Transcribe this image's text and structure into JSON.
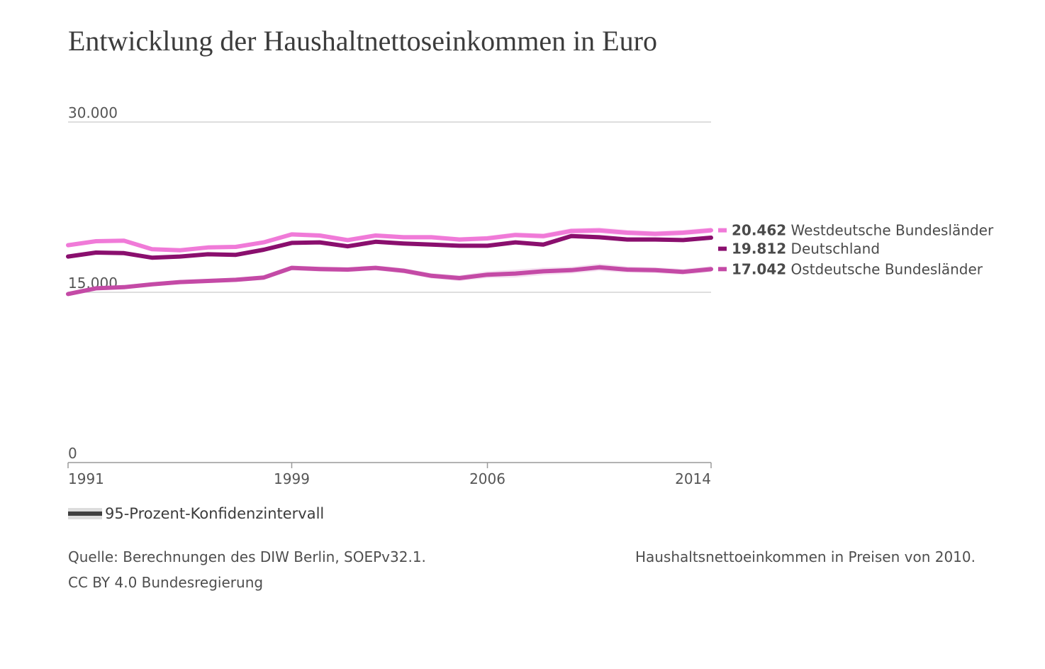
{
  "title": "Entwicklung der Haushaltnettoseinkommen in Euro",
  "chart_data": {
    "type": "line",
    "title": "Entwicklung der Haushaltnettoseinkommen in Euro",
    "xlabel": "",
    "ylabel": "",
    "xlim": [
      1991,
      2014
    ],
    "ylim": [
      0,
      30000
    ],
    "y_ticks": [
      {
        "value": 0,
        "label": "0"
      },
      {
        "value": 15000,
        "label": "15.000"
      },
      {
        "value": 30000,
        "label": "30.000"
      }
    ],
    "x_ticks": [
      {
        "value": 1991,
        "label": "1991"
      },
      {
        "value": 1999,
        "label": "1999"
      },
      {
        "value": 2006,
        "label": "2006"
      },
      {
        "value": 2014,
        "label": "2014"
      }
    ],
    "grid": true,
    "x": [
      1991,
      1992,
      1993,
      1994,
      1995,
      1996,
      1997,
      1998,
      1999,
      2000,
      2001,
      2002,
      2003,
      2004,
      2005,
      2006,
      2007,
      2008,
      2009,
      2010,
      2011,
      2012,
      2013,
      2014
    ],
    "series": [
      {
        "name": "Westdeutsche Bundesländer",
        "end_value": "20.462",
        "color": "#f07ad8",
        "band_color": "#f7c4ec",
        "values": [
          19150,
          19500,
          19550,
          18800,
          18700,
          18950,
          19000,
          19400,
          20100,
          20000,
          19600,
          20000,
          19850,
          19850,
          19650,
          19750,
          20050,
          19950,
          20400,
          20450,
          20250,
          20150,
          20250,
          20462
        ],
        "ci": [
          180,
          160,
          160,
          160,
          160,
          160,
          160,
          180,
          200,
          200,
          200,
          200,
          200,
          200,
          200,
          220,
          220,
          240,
          250,
          260,
          250,
          240,
          240,
          240
        ]
      },
      {
        "name": "Deutschland",
        "end_value": "19.812",
        "color": "#8a0f6e",
        "band_color": "#d9a3c9",
        "values": [
          18150,
          18500,
          18450,
          18050,
          18150,
          18350,
          18300,
          18750,
          19350,
          19400,
          19050,
          19450,
          19300,
          19200,
          19100,
          19100,
          19400,
          19200,
          19950,
          19850,
          19650,
          19650,
          19600,
          19812
        ],
        "ci": [
          140,
          120,
          120,
          120,
          120,
          120,
          120,
          140,
          150,
          150,
          150,
          150,
          150,
          150,
          150,
          170,
          170,
          180,
          190,
          200,
          190,
          180,
          180,
          180
        ]
      },
      {
        "name": "Ostdeutsche Bundesländer",
        "end_value": "17.042",
        "color": "#c44aa6",
        "band_color": "#edcbe5",
        "values": [
          14850,
          15350,
          15450,
          15700,
          15900,
          16000,
          16100,
          16300,
          17150,
          17050,
          17000,
          17150,
          16900,
          16450,
          16250,
          16550,
          16650,
          16850,
          16950,
          17200,
          17000,
          16950,
          16800,
          17042
        ],
        "ci": [
          180,
          180,
          180,
          180,
          180,
          180,
          180,
          200,
          220,
          220,
          220,
          220,
          230,
          240,
          260,
          300,
          350,
          330,
          300,
          320,
          280,
          260,
          260,
          260
        ]
      }
    ]
  },
  "legend": {
    "label": "95-Prozent-Konfidenzintervall"
  },
  "notes": {
    "source": "Quelle: Berechnungen des DIW Berlin, SOEPv32.1.",
    "license": "CC BY 4.0 Bundesregierung",
    "price_note": "Haushaltsnettoeinkommen in Preisen von 2010."
  }
}
